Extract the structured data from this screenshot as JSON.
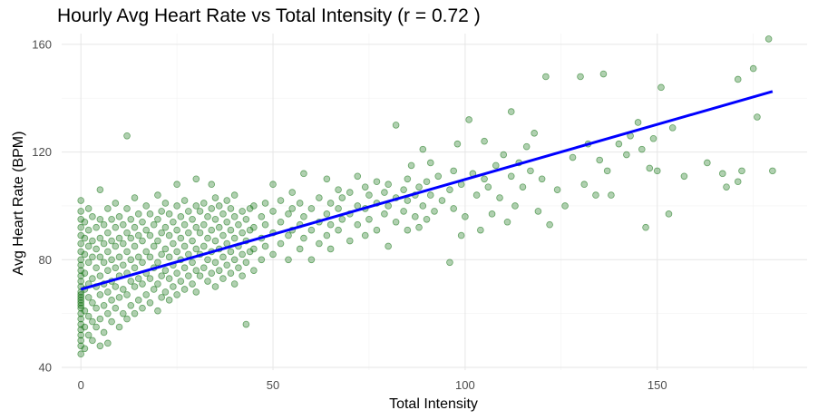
{
  "chart_data": {
    "type": "scatter",
    "title": "Hourly Avg Heart Rate vs Total Intensity (r = 0.72 )",
    "xlabel": "Total Intensity",
    "ylabel": "Avg Heart Rate (BPM)",
    "xlim": [
      -5,
      189
    ],
    "ylim": [
      39,
      164
    ],
    "x_ticks": [
      0,
      50,
      100,
      150
    ],
    "y_ticks": [
      40,
      80,
      120,
      160
    ],
    "grid": true,
    "legend": "none",
    "colors": {
      "points": "#0a6e0a",
      "fit_line": "#0000ff"
    },
    "fit_line": {
      "x": [
        0,
        180
      ],
      "y": [
        69,
        142.5
      ]
    },
    "points": [
      [
        0,
        45
      ],
      [
        0,
        48
      ],
      [
        0,
        50
      ],
      [
        0,
        52
      ],
      [
        0,
        54
      ],
      [
        0,
        56
      ],
      [
        0,
        58
      ],
      [
        0,
        60
      ],
      [
        0,
        62
      ],
      [
        0,
        63
      ],
      [
        0,
        64
      ],
      [
        0,
        65
      ],
      [
        0,
        66
      ],
      [
        0,
        67
      ],
      [
        0,
        68
      ],
      [
        0,
        70
      ],
      [
        0,
        72
      ],
      [
        0,
        74
      ],
      [
        0,
        76
      ],
      [
        0,
        78
      ],
      [
        0,
        80
      ],
      [
        0,
        83
      ],
      [
        0,
        86
      ],
      [
        0,
        89
      ],
      [
        0,
        92
      ],
      [
        0,
        95
      ],
      [
        0,
        98
      ],
      [
        0,
        102
      ],
      [
        1,
        47
      ],
      [
        1,
        55
      ],
      [
        1,
        61
      ],
      [
        1,
        69
      ],
      [
        1,
        75
      ],
      [
        1,
        82
      ],
      [
        1,
        88
      ],
      [
        1,
        94
      ],
      [
        2,
        52
      ],
      [
        2,
        59
      ],
      [
        2,
        66
      ],
      [
        2,
        71
      ],
      [
        2,
        79
      ],
      [
        2,
        85
      ],
      [
        2,
        91
      ],
      [
        2,
        99
      ],
      [
        3,
        50
      ],
      [
        3,
        57
      ],
      [
        3,
        64
      ],
      [
        3,
        73
      ],
      [
        3,
        81
      ],
      [
        3,
        87
      ],
      [
        3,
        96
      ],
      [
        4,
        55
      ],
      [
        4,
        62
      ],
      [
        4,
        70
      ],
      [
        4,
        77
      ],
      [
        4,
        84
      ],
      [
        4,
        92
      ],
      [
        5,
        48
      ],
      [
        5,
        58
      ],
      [
        5,
        67
      ],
      [
        5,
        74
      ],
      [
        5,
        81
      ],
      [
        5,
        88
      ],
      [
        5,
        95
      ],
      [
        5,
        106
      ],
      [
        6,
        53
      ],
      [
        6,
        63
      ],
      [
        6,
        71
      ],
      [
        6,
        79
      ],
      [
        6,
        86
      ],
      [
        6,
        93
      ],
      [
        7,
        49
      ],
      [
        7,
        60
      ],
      [
        7,
        68
      ],
      [
        7,
        76
      ],
      [
        7,
        83
      ],
      [
        7,
        90
      ],
      [
        7,
        99
      ],
      [
        8,
        57
      ],
      [
        8,
        65
      ],
      [
        8,
        72
      ],
      [
        8,
        80
      ],
      [
        8,
        87
      ],
      [
        8,
        95
      ],
      [
        9,
        62
      ],
      [
        9,
        70
      ],
      [
        9,
        77
      ],
      [
        9,
        85
      ],
      [
        9,
        92
      ],
      [
        9,
        101
      ],
      [
        10,
        55
      ],
      [
        10,
        66
      ],
      [
        10,
        74
      ],
      [
        10,
        81
      ],
      [
        10,
        88
      ],
      [
        10,
        96
      ],
      [
        11,
        60
      ],
      [
        11,
        69
      ],
      [
        11,
        78
      ],
      [
        11,
        86
      ],
      [
        11,
        93
      ],
      [
        12,
        58
      ],
      [
        12,
        67
      ],
      [
        12,
        75
      ],
      [
        12,
        83
      ],
      [
        12,
        90
      ],
      [
        12,
        99
      ],
      [
        12,
        126
      ],
      [
        13,
        63
      ],
      [
        13,
        72
      ],
      [
        13,
        80
      ],
      [
        13,
        88
      ],
      [
        13,
        95
      ],
      [
        14,
        60
      ],
      [
        14,
        70
      ],
      [
        14,
        77
      ],
      [
        14,
        85
      ],
      [
        14,
        92
      ],
      [
        14,
        103
      ],
      [
        15,
        65
      ],
      [
        15,
        73
      ],
      [
        15,
        81
      ],
      [
        15,
        89
      ],
      [
        15,
        97
      ],
      [
        16,
        62
      ],
      [
        16,
        71
      ],
      [
        16,
        79
      ],
      [
        16,
        87
      ],
      [
        16,
        94
      ],
      [
        17,
        67
      ],
      [
        17,
        75
      ],
      [
        17,
        83
      ],
      [
        17,
        91
      ],
      [
        17,
        100
      ],
      [
        18,
        64
      ],
      [
        18,
        73
      ],
      [
        18,
        81
      ],
      [
        18,
        89
      ],
      [
        18,
        97
      ],
      [
        19,
        69
      ],
      [
        19,
        77
      ],
      [
        19,
        85
      ],
      [
        19,
        93
      ],
      [
        20,
        61
      ],
      [
        20,
        71
      ],
      [
        20,
        79
      ],
      [
        20,
        87
      ],
      [
        20,
        95
      ],
      [
        20,
        104
      ],
      [
        21,
        66
      ],
      [
        21,
        74
      ],
      [
        21,
        82
      ],
      [
        21,
        90
      ],
      [
        21,
        98
      ],
      [
        22,
        68
      ],
      [
        22,
        76
      ],
      [
        22,
        84
      ],
      [
        22,
        92
      ],
      [
        22,
        101
      ],
      [
        23,
        65
      ],
      [
        23,
        73
      ],
      [
        23,
        81
      ],
      [
        23,
        89
      ],
      [
        23,
        97
      ],
      [
        24,
        70
      ],
      [
        24,
        78
      ],
      [
        24,
        86
      ],
      [
        24,
        94
      ],
      [
        25,
        67
      ],
      [
        25,
        75
      ],
      [
        25,
        83
      ],
      [
        25,
        91
      ],
      [
        25,
        100
      ],
      [
        25,
        108
      ],
      [
        26,
        72
      ],
      [
        26,
        80
      ],
      [
        26,
        88
      ],
      [
        26,
        96
      ],
      [
        27,
        69
      ],
      [
        27,
        77
      ],
      [
        27,
        85
      ],
      [
        27,
        93
      ],
      [
        27,
        102
      ],
      [
        28,
        74
      ],
      [
        28,
        82
      ],
      [
        28,
        90
      ],
      [
        28,
        98
      ],
      [
        29,
        71
      ],
      [
        29,
        79
      ],
      [
        29,
        87
      ],
      [
        29,
        95
      ],
      [
        30,
        68
      ],
      [
        30,
        76
      ],
      [
        30,
        84
      ],
      [
        30,
        92
      ],
      [
        30,
        100
      ],
      [
        30,
        110
      ],
      [
        31,
        74
      ],
      [
        31,
        82
      ],
      [
        31,
        90
      ],
      [
        31,
        98
      ],
      [
        32,
        77
      ],
      [
        32,
        85
      ],
      [
        32,
        93
      ],
      [
        32,
        101
      ],
      [
        33,
        72
      ],
      [
        33,
        80
      ],
      [
        33,
        88
      ],
      [
        33,
        96
      ],
      [
        34,
        75
      ],
      [
        34,
        83
      ],
      [
        34,
        91
      ],
      [
        34,
        99
      ],
      [
        34,
        108
      ],
      [
        35,
        70
      ],
      [
        35,
        79
      ],
      [
        35,
        87
      ],
      [
        35,
        95
      ],
      [
        35,
        103
      ],
      [
        36,
        76
      ],
      [
        36,
        84
      ],
      [
        36,
        92
      ],
      [
        36,
        100
      ],
      [
        37,
        73
      ],
      [
        37,
        81
      ],
      [
        37,
        89
      ],
      [
        37,
        97
      ],
      [
        38,
        78
      ],
      [
        38,
        86
      ],
      [
        38,
        94
      ],
      [
        38,
        102
      ],
      [
        39,
        75
      ],
      [
        39,
        83
      ],
      [
        39,
        91
      ],
      [
        39,
        99
      ],
      [
        40,
        71
      ],
      [
        40,
        80
      ],
      [
        40,
        88
      ],
      [
        40,
        96
      ],
      [
        40,
        104
      ],
      [
        41,
        77
      ],
      [
        41,
        85
      ],
      [
        41,
        93
      ],
      [
        42,
        74
      ],
      [
        42,
        82
      ],
      [
        42,
        90
      ],
      [
        42,
        98
      ],
      [
        43,
        56
      ],
      [
        43,
        79
      ],
      [
        43,
        87
      ],
      [
        43,
        95
      ],
      [
        44,
        83
      ],
      [
        44,
        91
      ],
      [
        44,
        99
      ],
      [
        45,
        76
      ],
      [
        45,
        84
      ],
      [
        45,
        92
      ],
      [
        45,
        100
      ],
      [
        47,
        80
      ],
      [
        47,
        88
      ],
      [
        47,
        96
      ],
      [
        48,
        85
      ],
      [
        48,
        93
      ],
      [
        48,
        101
      ],
      [
        50,
        82
      ],
      [
        50,
        90
      ],
      [
        50,
        98
      ],
      [
        50,
        108
      ],
      [
        52,
        86
      ],
      [
        52,
        94
      ],
      [
        52,
        102
      ],
      [
        54,
        80
      ],
      [
        54,
        89
      ],
      [
        54,
        97
      ],
      [
        55,
        91
      ],
      [
        55,
        99
      ],
      [
        55,
        105
      ],
      [
        57,
        84
      ],
      [
        57,
        93
      ],
      [
        57,
        101
      ],
      [
        58,
        88
      ],
      [
        58,
        96
      ],
      [
        58,
        112
      ],
      [
        60,
        80
      ],
      [
        60,
        91
      ],
      [
        60,
        99
      ],
      [
        62,
        86
      ],
      [
        62,
        94
      ],
      [
        62,
        103
      ],
      [
        64,
        89
      ],
      [
        64,
        97
      ],
      [
        64,
        110
      ],
      [
        65,
        84
      ],
      [
        65,
        93
      ],
      [
        65,
        101
      ],
      [
        67,
        91
      ],
      [
        67,
        99
      ],
      [
        67,
        106
      ],
      [
        68,
        95
      ],
      [
        68,
        103
      ],
      [
        70,
        87
      ],
      [
        70,
        97
      ],
      [
        70,
        105
      ],
      [
        72,
        93
      ],
      [
        72,
        100
      ],
      [
        72,
        111
      ],
      [
        74,
        89
      ],
      [
        74,
        99
      ],
      [
        74,
        107
      ],
      [
        75,
        95
      ],
      [
        75,
        104
      ],
      [
        77,
        91
      ],
      [
        77,
        101
      ],
      [
        77,
        109
      ],
      [
        79,
        97
      ],
      [
        79,
        105
      ],
      [
        80,
        85
      ],
      [
        80,
        100
      ],
      [
        80,
        108
      ],
      [
        82,
        94
      ],
      [
        82,
        103
      ],
      [
        82,
        130
      ],
      [
        84,
        98
      ],
      [
        84,
        106
      ],
      [
        85,
        91
      ],
      [
        85,
        102
      ],
      [
        85,
        110
      ],
      [
        86,
        115
      ],
      [
        87,
        96
      ],
      [
        87,
        104
      ],
      [
        88,
        92
      ],
      [
        88,
        107
      ],
      [
        89,
        100
      ],
      [
        89,
        121
      ],
      [
        90,
        95
      ],
      [
        90,
        109
      ],
      [
        91,
        104
      ],
      [
        91,
        116
      ],
      [
        92,
        98
      ],
      [
        93,
        111
      ],
      [
        94,
        102
      ],
      [
        96,
        79
      ],
      [
        96,
        106
      ],
      [
        97,
        113
      ],
      [
        97,
        99
      ],
      [
        98,
        123
      ],
      [
        99,
        108
      ],
      [
        99,
        89
      ],
      [
        100,
        96
      ],
      [
        101,
        132
      ],
      [
        102,
        112
      ],
      [
        103,
        104
      ],
      [
        104,
        91
      ],
      [
        105,
        110
      ],
      [
        105,
        124
      ],
      [
        106,
        107
      ],
      [
        107,
        97
      ],
      [
        108,
        115
      ],
      [
        109,
        103
      ],
      [
        110,
        119
      ],
      [
        111,
        94
      ],
      [
        112,
        111
      ],
      [
        112,
        135
      ],
      [
        113,
        100
      ],
      [
        114,
        116
      ],
      [
        115,
        107
      ],
      [
        116,
        122
      ],
      [
        117,
        113
      ],
      [
        118,
        127
      ],
      [
        119,
        98
      ],
      [
        120,
        110
      ],
      [
        121,
        148
      ],
      [
        122,
        93
      ],
      [
        124,
        106
      ],
      [
        126,
        100
      ],
      [
        128,
        118
      ],
      [
        130,
        148
      ],
      [
        131,
        108
      ],
      [
        132,
        123
      ],
      [
        134,
        104
      ],
      [
        135,
        117
      ],
      [
        136,
        149
      ],
      [
        137,
        113
      ],
      [
        138,
        104
      ],
      [
        140,
        123
      ],
      [
        142,
        119
      ],
      [
        143,
        126
      ],
      [
        145,
        131
      ],
      [
        146,
        121
      ],
      [
        147,
        92
      ],
      [
        148,
        114
      ],
      [
        149,
        125
      ],
      [
        150,
        113
      ],
      [
        151,
        144
      ],
      [
        153,
        97
      ],
      [
        154,
        129
      ],
      [
        157,
        111
      ],
      [
        163,
        116
      ],
      [
        167,
        112
      ],
      [
        168,
        107
      ],
      [
        171,
        147
      ],
      [
        171,
        109
      ],
      [
        172,
        113
      ],
      [
        175,
        151
      ],
      [
        176,
        133
      ],
      [
        179,
        162
      ],
      [
        180,
        113
      ]
    ]
  }
}
